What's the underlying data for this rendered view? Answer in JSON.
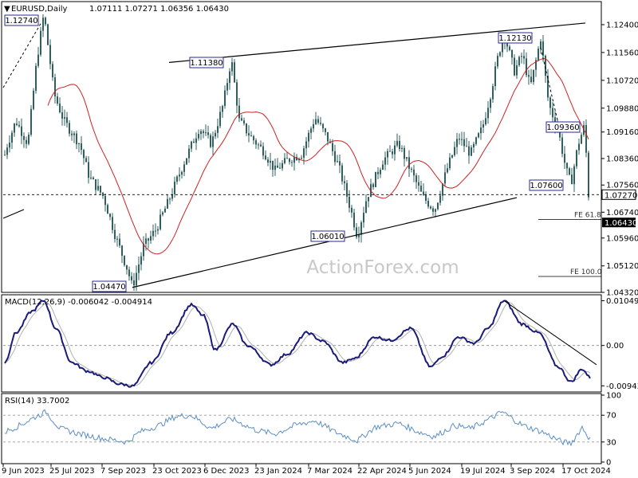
{
  "chart_data": [
    {
      "type": "candlestick",
      "title": "EURUSD,Daily",
      "ohlc_header": "1.07111 1.07271 1.06356 1.06430",
      "ylim": [
        1.0432,
        1.13
      ],
      "y_ticks": [
        "1.12400",
        "1.11560",
        "1.10720",
        "1.09880",
        "1.09160",
        "1.08360",
        "1.07560",
        "1.06740",
        "1.05960",
        "1.05120",
        "1.04320"
      ],
      "x_ticks": [
        "9 Jun 2023",
        "25 Jul 2023",
        "7 Sep 2023",
        "23 Oct 2023",
        "6 Dec 2023",
        "23 Jan 2024",
        "7 Mar 2024",
        "22 Apr 2024",
        "5 Jun 2024",
        "19 Jul 2024",
        "3 Sep 2024",
        "17 Oct 2024"
      ],
      "watermark": "ActionForex.com",
      "last_price_label": "1.06430",
      "level_label_1": "1.07270",
      "swing_labels": [
        "1.12740",
        "1.11380",
        "1.12130",
        "1.09360",
        "1.07600",
        "1.06010",
        "1.04470"
      ],
      "fib_labels": [
        "FE 61.8",
        "FE 100.0"
      ],
      "trendlines": [
        {
          "from": [
            "Nov 2023",
            1.1138
          ],
          "to": [
            "Oct 2024",
            1.124
          ]
        },
        {
          "from": [
            "Sep 2023",
            1.0447
          ],
          "to": [
            "Oct 2024",
            1.0718
          ]
        }
      ],
      "levels": {
        "dotted_support": 1.0727,
        "fe_61_8": 1.0652,
        "fe_100": 1.048
      },
      "colors": {
        "candles": "#2f5f5f",
        "moving_average": "#cc2222",
        "trendline": "#000000"
      }
    },
    {
      "type": "line",
      "title": "MACD(12,26,9) -0.006042 -0.004914",
      "y_ticks": [
        "0.01049",
        "0.00",
        "-0.009435"
      ],
      "ylim": [
        -0.0105,
        0.0115
      ],
      "colors": {
        "macd": "#1a1a7a",
        "signal": "#b0b0b0"
      }
    },
    {
      "type": "line",
      "title": "RSI(14) 33.7002",
      "y_ticks": [
        "100",
        "70",
        "30",
        "0"
      ],
      "ylim": [
        0,
        100
      ],
      "colors": {
        "rsi": "#5b8fc7"
      }
    }
  ]
}
